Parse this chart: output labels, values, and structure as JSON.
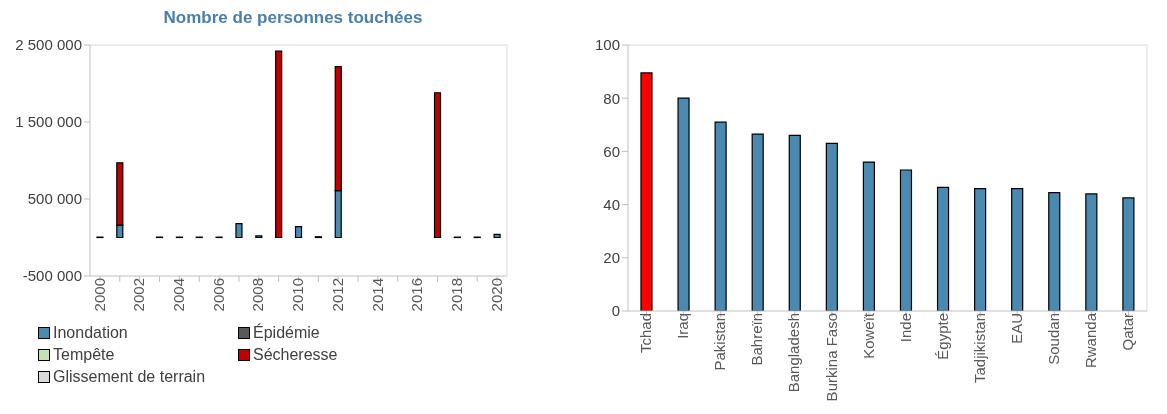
{
  "chart_data": [
    {
      "type": "bar",
      "title": "Nombre de personnes touchées",
      "stacked": true,
      "categories": [
        "2000",
        null,
        "2002",
        null,
        "2004",
        null,
        "2006",
        null,
        "2008",
        null,
        "2010",
        null,
        "2012",
        null,
        "2014",
        null,
        "2016",
        null,
        "2018",
        null,
        "2020"
      ],
      "series": [
        {
          "name": "Inondation",
          "color": "#4a8ab0",
          "values": [
            5000,
            160000,
            null,
            5000,
            5000,
            5000,
            5000,
            180000,
            20000,
            null,
            140000,
            10000,
            610000,
            null,
            null,
            null,
            null,
            null,
            5000,
            5000,
            40000
          ]
        },
        {
          "name": "Épidémie",
          "color": "#595959",
          "values": [
            null,
            null,
            null,
            null,
            null,
            null,
            null,
            null,
            null,
            null,
            null,
            null,
            null,
            null,
            null,
            null,
            null,
            null,
            null,
            null,
            null
          ]
        },
        {
          "name": "Tempête",
          "color": "#c6e0b4",
          "values": [
            null,
            null,
            null,
            null,
            null,
            null,
            null,
            null,
            null,
            null,
            null,
            null,
            null,
            null,
            null,
            null,
            null,
            null,
            null,
            null,
            null
          ]
        },
        {
          "name": "Sécheresse",
          "color": "#c00000",
          "values": [
            null,
            810000,
            null,
            null,
            null,
            null,
            null,
            null,
            null,
            2420000,
            null,
            null,
            1610000,
            null,
            null,
            null,
            null,
            1880000,
            null,
            null,
            null
          ]
        },
        {
          "name": "Glissement de terrain",
          "color": "#d9d9d9",
          "values": [
            null,
            null,
            null,
            null,
            null,
            null,
            null,
            null,
            null,
            null,
            null,
            null,
            null,
            null,
            null,
            null,
            null,
            null,
            null,
            null,
            null
          ]
        }
      ],
      "ylim": [
        -500000,
        2500000
      ],
      "yticks": [
        {
          "value": -500000,
          "label": "-500 000"
        },
        {
          "value": 500000,
          "label": "500 000"
        },
        {
          "value": 1500000,
          "label": "1 500 000"
        },
        {
          "value": 2500000,
          "label": "2 500 000"
        }
      ],
      "legend": "bottom"
    },
    {
      "type": "bar",
      "categories": [
        "Tchad",
        "Iraq",
        "Pakistan",
        "Bahreïn",
        "Bangladesh",
        "Burkina Faso",
        "Koweït",
        "Inde",
        "Égypte",
        "Tadjikistan",
        "EAU",
        "Soudan",
        "Rwanda",
        "Qatar"
      ],
      "values": [
        89.5,
        80,
        71,
        66.5,
        66,
        63,
        56,
        53,
        46.5,
        46,
        46,
        44.5,
        44,
        42.5
      ],
      "colors": [
        "#ff0000",
        "#4a8ab0",
        "#4a8ab0",
        "#4a8ab0",
        "#4a8ab0",
        "#4a8ab0",
        "#4a8ab0",
        "#4a8ab0",
        "#4a8ab0",
        "#4a8ab0",
        "#4a8ab0",
        "#4a8ab0",
        "#4a8ab0",
        "#4a8ab0"
      ],
      "ylim": [
        0,
        100
      ],
      "yticks": [
        0,
        20,
        40,
        60,
        80,
        100
      ]
    }
  ]
}
